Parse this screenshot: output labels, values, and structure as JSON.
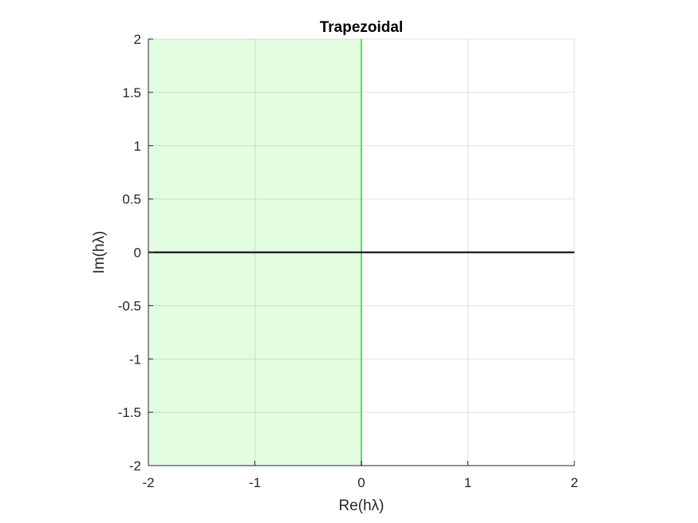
{
  "chart_data": {
    "type": "area",
    "title": "Trapezoidal",
    "xlabel": "Re(hλ)",
    "ylabel": "Im(hλ)",
    "xlim": [
      -2,
      2
    ],
    "ylim": [
      -2,
      2
    ],
    "x_ticks": [
      -2,
      -1,
      0,
      1,
      2
    ],
    "y_ticks": [
      -2,
      -1.5,
      -1,
      -0.5,
      0,
      0.5,
      1,
      1.5,
      2
    ],
    "x_tick_labels": [
      "-2",
      "-1",
      "0",
      "1",
      "2"
    ],
    "y_tick_labels": [
      "-2",
      "-1.5",
      "-1",
      "-0.5",
      "0",
      "0.5",
      "1",
      "1.5",
      "2"
    ],
    "grid": true,
    "stability_region": {
      "x_range": [
        -2,
        0
      ],
      "y_range": [
        -2,
        2
      ],
      "fill_color": "#e2fde2",
      "edge_color": "#4de24d"
    },
    "real_axis_line": {
      "x": [
        -2,
        2
      ],
      "y": [
        0,
        0
      ],
      "color": "#000000"
    },
    "boundary_line": {
      "x": [
        0,
        0
      ],
      "y": [
        -2,
        2
      ],
      "color": "#4de24d"
    }
  }
}
